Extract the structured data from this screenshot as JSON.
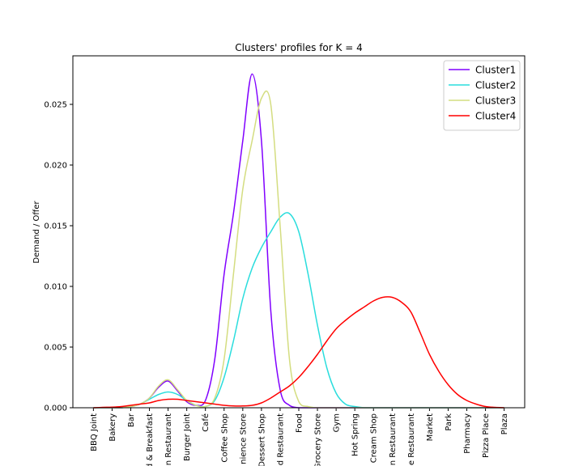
{
  "chart_data": {
    "type": "line",
    "title": "Clusters' profiles for K = 4",
    "y_label": "Demand / Offer",
    "categories": [
      "BBQ Joint",
      "Bakery",
      "Bar",
      "d & Breakfast",
      "n Restaurant",
      "Burger Joint",
      "Café",
      "Coffee Shop",
      "nience Store",
      "Dessert Shop",
      "d Restaurant",
      "Food",
      "Grocery Store",
      "Gym",
      "Hot Spring",
      "Cream Shop",
      "n Restaurant",
      "e Restaurant",
      "Market",
      "Park",
      "Pharmacy",
      "Pizza Place",
      "Plaza"
    ],
    "x": [
      0,
      0.5,
      1,
      1.5,
      2,
      2.5,
      3,
      3.5,
      4,
      4.5,
      5,
      5.5,
      6,
      6.5,
      7,
      7.5,
      8,
      8.5,
      9,
      9.5,
      10,
      10.5,
      11,
      11.5,
      12,
      12.5,
      13,
      13.5,
      14,
      14.5,
      15,
      15.5,
      16,
      16.5,
      17,
      17.5,
      18,
      18.5,
      19,
      19.5,
      20,
      20.5,
      21,
      21.5,
      22
    ],
    "xlim": [
      -1.1,
      23.1
    ],
    "ylim": [
      0,
      0.029
    ],
    "yticks": [
      {
        "value": 0,
        "label": "0.000"
      },
      {
        "value": 0.005,
        "label": "0.005"
      },
      {
        "value": 0.01,
        "label": "0.010"
      },
      {
        "value": 0.015,
        "label": "0.015"
      },
      {
        "value": 0.02,
        "label": "0.020"
      },
      {
        "value": 0.025,
        "label": "0.025"
      }
    ],
    "legend": "upper right",
    "series": [
      {
        "name": "Cluster1",
        "color": "#8000ff",
        "values": [
          0,
          0,
          0,
          0,
          0.0001,
          0.0003,
          0.0008,
          0.0017,
          0.0022,
          0.0014,
          0.0005,
          0.0002,
          0.0006,
          0.004,
          0.011,
          0.016,
          0.022,
          0.0275,
          0.022,
          0.008,
          0.0015,
          0.0002,
          0,
          0,
          0,
          0,
          0,
          0,
          0,
          0,
          0,
          0,
          0,
          0,
          0,
          0,
          0,
          0,
          0,
          0,
          0,
          0,
          0,
          0,
          0
        ]
      },
      {
        "name": "Cluster2",
        "color": "#2adddd",
        "values": [
          0,
          0,
          0,
          0,
          0.0001,
          0.0003,
          0.0007,
          0.0011,
          0.0013,
          0.0011,
          0.0006,
          0.0002,
          0.0001,
          0.0006,
          0.0025,
          0.0055,
          0.009,
          0.0115,
          0.0132,
          0.0145,
          0.0157,
          0.016,
          0.0145,
          0.011,
          0.0068,
          0.0033,
          0.0012,
          0.0003,
          0.0001,
          0,
          0,
          0,
          0,
          0,
          0,
          0,
          0,
          0,
          0,
          0,
          0,
          0,
          0,
          0,
          0
        ]
      },
      {
        "name": "Cluster3",
        "color": "#d4dd80",
        "values": [
          0,
          0,
          0,
          0,
          0.0001,
          0.0003,
          0.0008,
          0.0018,
          0.0023,
          0.0015,
          0.0006,
          0.0002,
          0.0001,
          0.0008,
          0.004,
          0.011,
          0.018,
          0.022,
          0.0255,
          0.025,
          0.015,
          0.004,
          0.0005,
          0.0001,
          0,
          0,
          0,
          0,
          0,
          0,
          0,
          0,
          0,
          0,
          0,
          0,
          0,
          0,
          0,
          0,
          0,
          0,
          0,
          0,
          0
        ]
      },
      {
        "name": "Cluster4",
        "color": "#ff0000",
        "values": [
          0,
          3e-05,
          5e-05,
          0.0001,
          0.0002,
          0.0003,
          0.0004,
          0.0006,
          0.0007,
          0.0007,
          0.0006,
          0.0005,
          0.0004,
          0.0003,
          0.0002,
          0.00015,
          0.00015,
          0.0002,
          0.0004,
          0.0008,
          0.0013,
          0.0018,
          0.0025,
          0.0034,
          0.0044,
          0.0055,
          0.0065,
          0.0072,
          0.0078,
          0.0083,
          0.0088,
          0.0091,
          0.0091,
          0.0087,
          0.0079,
          0.0062,
          0.0044,
          0.003,
          0.0019,
          0.0011,
          0.0006,
          0.0003,
          0.0001,
          3e-05,
          0
        ]
      }
    ]
  }
}
